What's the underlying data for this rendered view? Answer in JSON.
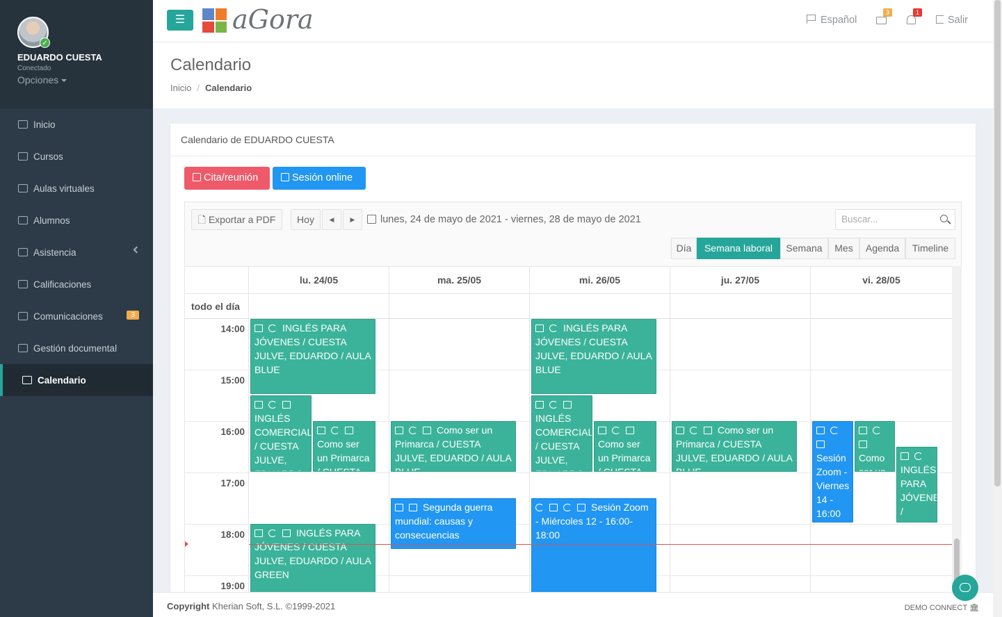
{
  "user": {
    "name": "EDUARDO CUESTA",
    "status": "Conectado",
    "options": "Opciones"
  },
  "sidebar": {
    "items": [
      {
        "label": "Inicio",
        "icon": "home-icon"
      },
      {
        "label": "Cursos",
        "icon": "books-icon"
      },
      {
        "label": "Aulas virtuales",
        "icon": "laptop-icon"
      },
      {
        "label": "Alumnos",
        "icon": "users-icon"
      },
      {
        "label": "Asistencia",
        "icon": "list-icon"
      },
      {
        "label": "Calificaciones",
        "icon": "grades-icon"
      },
      {
        "label": "Comunicaciones",
        "icon": "envelope-icon",
        "badge": "3"
      },
      {
        "label": "Gestión documental",
        "icon": "folder-icon"
      },
      {
        "label": "Calendario",
        "icon": "calendar-icon",
        "active": true
      }
    ]
  },
  "topbar": {
    "logo_text": "aGora",
    "language": "Español",
    "mail_badge": "3",
    "bell_badge": "1",
    "logout": "Salir",
    "colors": {
      "accent": "#26a69a",
      "mail_badge": "#f0ad4e",
      "bell_badge": "#e53935"
    }
  },
  "header": {
    "title": "Calendario",
    "breadcrumb_home": "Inicio",
    "breadcrumb_current": "Calendario"
  },
  "card": {
    "title": "Calendario de EDUARDO CUESTA",
    "btn_meeting": "Cita/reunión",
    "btn_online": "Sesión online"
  },
  "toolbar": {
    "export": "Exportar a PDF",
    "today": "Hoy",
    "prev": "◀",
    "next": "▶",
    "range": "lunes, 24 de mayo de 2021 - viernes, 28 de mayo de 2021",
    "search_placeholder": "Buscar...",
    "views": [
      "Día",
      "Semana laboral",
      "Semana",
      "Mes",
      "Agenda",
      "Timeline"
    ],
    "active_view": "Semana laboral"
  },
  "calendar": {
    "days": [
      "lu. 24/05",
      "ma. 25/05",
      "mi. 26/05",
      "ju. 27/05",
      "vi. 28/05"
    ],
    "allday_label": "todo el día",
    "hours": [
      "14:00",
      "15:00",
      "16:00",
      "17:00",
      "18:00",
      "19:00"
    ],
    "events": [
      {
        "text": "INGLÉS PARA JÓVENES / CUESTA JULVE, EDUARDO / AULA BLUE"
      },
      {
        "text": "INGLÉS COMERCIAL / CUESTA JULVE, EDUARDO / AULA"
      },
      {
        "text": "Como ser un Primarca / CUESTA JULVE"
      },
      {
        "text": "INGLÉS PARA JÓVENES / CUESTA JULVE, EDUARDO / AULA GREEN"
      },
      {
        "text": "Como ser un Primarca / CUESTA JULVE, EDUARDO / AULA BLUE"
      },
      {
        "text": "Segunda guerra mundial: causas y consecuencias"
      },
      {
        "text": "INGLÉS PARA JÓVENES / CUESTA JULVE, EDUARDO / AULA BLUE"
      },
      {
        "text": "INGLÉS COMERCIAL / CUESTA JULVE, EDUARDO / AULA"
      },
      {
        "text": "Como ser un Primarca / CUESTA JULVE"
      },
      {
        "text": "Sesión Zoom - Miércoles 12 - 16:00-18:00"
      },
      {
        "text": "Como ser un Primarca / CUESTA JULVE, EDUARDO / AULA BLUE"
      },
      {
        "text": "Sesión Zoom - Viernes 14 - 16:00"
      },
      {
        "text": "Como ser un"
      },
      {
        "text": "INGLÉS PARA JÓVENES / CUESTA"
      }
    ]
  },
  "footer": {
    "copyright_bold": "Copyright",
    "copyright_rest": "Kherian Soft, S.L. ©1999-2021",
    "demo": "DEMO CONNECT"
  }
}
